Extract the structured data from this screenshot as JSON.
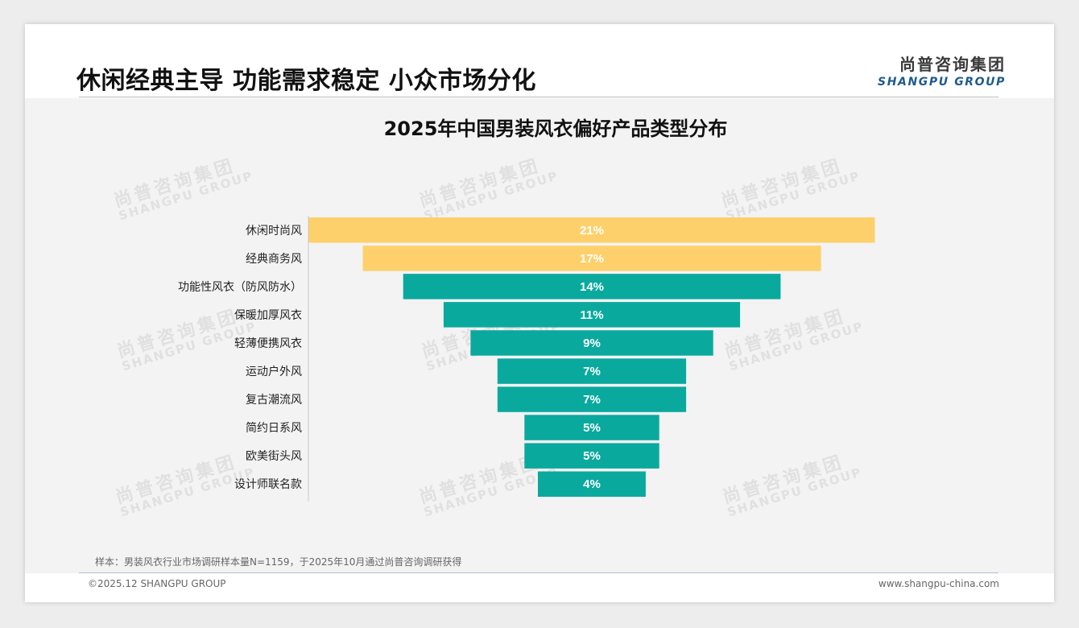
{
  "header": {
    "title": "休闲经典主导 功能需求稳定 小众市场分化",
    "logo_cn": "尚普咨询集团",
    "logo_en": "SHANGPU GROUP"
  },
  "watermark": {
    "cn": "尚普咨询集团",
    "en": "SHANGPU GROUP"
  },
  "footer": {
    "source": "样本：男装风衣行业市场调研样本量N=1159，于2025年10月通过尚普咨询调研获得",
    "copyright": "©2025.12 SHANGPU GROUP",
    "website": "www.shangpu-china.com"
  },
  "colors": {
    "highlight": "#fdd06b",
    "primary": "#0aa99e"
  },
  "chart_data": {
    "type": "bar",
    "orientation": "horizontal-centered (funnel)",
    "title": "2025年中国男装风衣偏好产品类型分布",
    "categories": [
      "休闲时尚风",
      "经典商务风",
      "功能性风衣（防风防水）",
      "保暖加厚风衣",
      "轻薄便携风衣",
      "运动户外风",
      "复古潮流风",
      "简约日系风",
      "欧美街头风",
      "设计师联名款"
    ],
    "values": [
      21,
      17,
      14,
      11,
      9,
      7,
      7,
      5,
      5,
      4
    ],
    "value_labels": [
      "21%",
      "17%",
      "14%",
      "11%",
      "9%",
      "7%",
      "7%",
      "5%",
      "5%",
      "4%"
    ],
    "bar_colors": [
      "#fdd06b",
      "#fdd06b",
      "#0aa99e",
      "#0aa99e",
      "#0aa99e",
      "#0aa99e",
      "#0aa99e",
      "#0aa99e",
      "#0aa99e",
      "#0aa99e"
    ],
    "unit": "%",
    "xlabel": "",
    "ylabel": "",
    "xlim": [
      0,
      21
    ],
    "legend": "none",
    "grid": false
  }
}
